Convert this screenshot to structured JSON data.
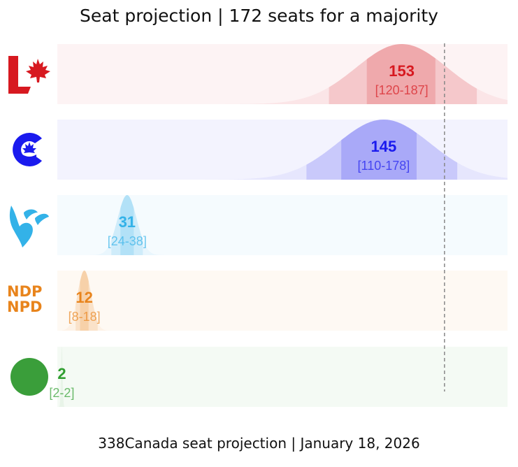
{
  "title": "Seat projection | 172 seats for a majority",
  "footer": "338Canada seat projection | January 18, 2026",
  "colors": {
    "liberal": "#d71920",
    "conservative": "#1a1aee",
    "bloc": "#33b2e8",
    "ndp": "#e8841c",
    "green": "#2f9e2f"
  },
  "chart_data": {
    "type": "area",
    "title": "Seat projection | 172 seats for a majority",
    "xlabel": "",
    "ylabel": "",
    "xlim": [
      0,
      200
    ],
    "majority_line": 172,
    "grid": false,
    "series": [
      {
        "party": "liberal",
        "logo": "liberal-logo",
        "value": 153,
        "range_label": "[120-187]",
        "low": 120,
        "high": 187,
        "inner_low": 137,
        "inner_high": 168
      },
      {
        "party": "conservative",
        "logo": "conservative-logo",
        "value": 145,
        "range_label": "[110-178]",
        "low": 110,
        "high": 178,
        "inner_low": 126,
        "inner_high": 160
      },
      {
        "party": "bloc",
        "logo": "bloc-logo",
        "value": 31,
        "range_label": "[24-38]",
        "low": 24,
        "high": 38,
        "inner_low": 28,
        "inner_high": 34
      },
      {
        "party": "ndp",
        "logo": "ndp-logo",
        "value": 12,
        "range_label": "[8-18]",
        "low": 8,
        "high": 18,
        "inner_low": 10,
        "inner_high": 14
      },
      {
        "party": "green",
        "logo": "green-logo",
        "value": 2,
        "range_label": "[2-2]",
        "low": 2,
        "high": 2,
        "inner_low": 2,
        "inner_high": 2
      }
    ]
  },
  "logos": {
    "ndp_line1": "NDP",
    "ndp_line2": "NPD"
  }
}
